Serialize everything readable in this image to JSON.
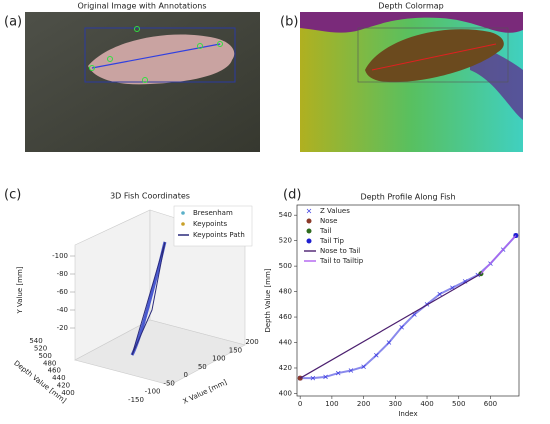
{
  "panels": [
    {
      "label": "(a)",
      "title": "Original Image with Annotations"
    },
    {
      "label": "(b)",
      "title": "Depth Colormap"
    }
  ],
  "chart_data": [
    {
      "type": "scatter3d",
      "label": "(c)",
      "title": "3D Fish Coordinates",
      "xlabel": "X Value [mm]",
      "ylabel": "Y Value [mm]",
      "zlabel": "Depth Value [mm]",
      "xticks": [
        -150,
        -100,
        -50,
        0,
        50,
        100,
        150,
        200
      ],
      "yticks": [
        -100,
        -80,
        -60,
        -40,
        -20
      ],
      "zticks": [
        540,
        520,
        500,
        480,
        460,
        440,
        420,
        400
      ],
      "legend": [
        {
          "name": "Bresenham",
          "color": "#5ab0c8"
        },
        {
          "name": "Keypoints",
          "color": "#c8a028"
        },
        {
          "name": "Keypoints Path",
          "color": "#2a2a7a"
        }
      ]
    },
    {
      "type": "line",
      "label": "(d)",
      "title": "Depth Profile Along Fish",
      "xlabel": "Index",
      "ylabel": "Depth Value [mm]",
      "xlim": [
        -10,
        690
      ],
      "ylim": [
        398,
        548
      ],
      "xticks": [
        0,
        100,
        200,
        300,
        400,
        500,
        600
      ],
      "yticks": [
        400,
        420,
        440,
        460,
        480,
        500,
        520,
        540
      ],
      "series": [
        {
          "name": "Z Values",
          "marker": "x",
          "color": "#3a3ae0",
          "x": [
            0,
            40,
            80,
            120,
            160,
            200,
            240,
            280,
            320,
            360,
            400,
            440,
            480,
            520,
            560,
            600,
            640,
            680
          ],
          "values": [
            412,
            412,
            413,
            416,
            418,
            421,
            430,
            440,
            452,
            462,
            470,
            478,
            483,
            488,
            493,
            502,
            513,
            524
          ]
        },
        {
          "name": "Nose",
          "marker": "o",
          "color": "#8b3a2a",
          "x": [
            0
          ],
          "values": [
            412
          ]
        },
        {
          "name": "Tail",
          "marker": "o",
          "color": "#2e6b1e",
          "x": [
            570
          ],
          "values": [
            494
          ]
        },
        {
          "name": "Tail Tip",
          "marker": "o",
          "color": "#1f1fd0",
          "x": [
            680
          ],
          "values": [
            524
          ]
        },
        {
          "name": "Nose to Tail",
          "marker": "line",
          "color": "#4b1f6f",
          "x": [
            0,
            570
          ],
          "values": [
            412,
            494
          ]
        },
        {
          "name": "Tail to Tailtip",
          "marker": "line",
          "color": "#b060f0",
          "x": [
            570,
            680
          ],
          "values": [
            494,
            524
          ]
        }
      ]
    }
  ]
}
